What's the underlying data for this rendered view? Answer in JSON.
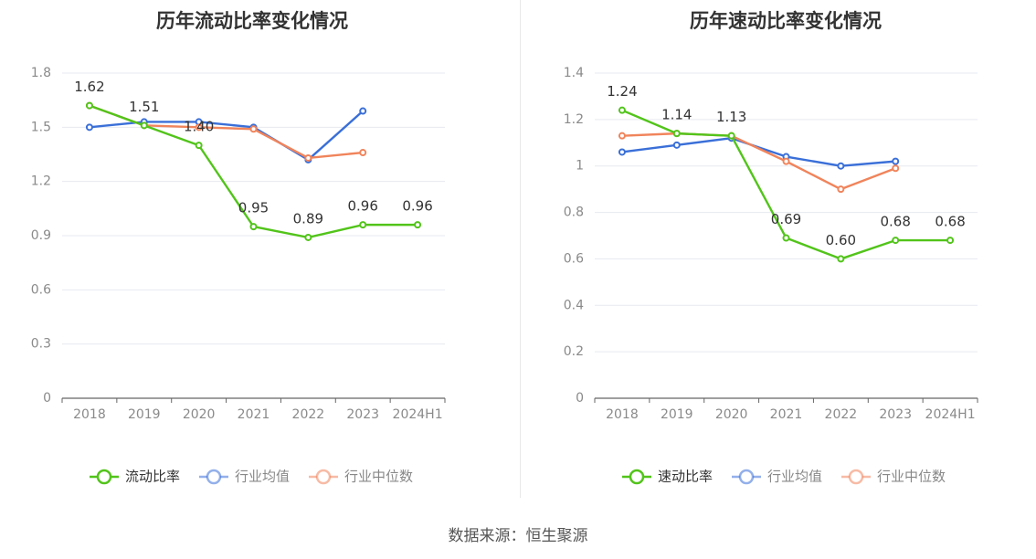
{
  "colors": {
    "primary": "#52c41a",
    "avg": "#3a6fd8",
    "median": "#f0845b",
    "grid": "#e6e9f0",
    "axis": "#666666",
    "tick": "#8a8a8a",
    "title": "#333333"
  },
  "source": "数据来源：恒生聚源",
  "chart_data": [
    {
      "type": "line",
      "title": "历年流动比率变化情况",
      "categories": [
        "2018",
        "2019",
        "2020",
        "2021",
        "2022",
        "2023",
        "2024H1"
      ],
      "ylim": [
        0,
        1.8
      ],
      "yticks": [
        "0",
        "0.3",
        "0.6",
        "0.9",
        "1.2",
        "1.5",
        "1.8"
      ],
      "grid": true,
      "legend_position": "bottom",
      "series": [
        {
          "name": "流动比率",
          "role": "primary",
          "values": [
            1.62,
            1.51,
            1.4,
            0.95,
            0.89,
            0.96,
            0.96
          ],
          "labels": [
            "1.62",
            "1.51",
            "1.40",
            "0.95",
            "0.89",
            "0.96",
            "0.96"
          ]
        },
        {
          "name": "行业均值",
          "role": "avg",
          "values": [
            1.5,
            1.53,
            1.53,
            1.5,
            1.32,
            1.59,
            null
          ]
        },
        {
          "name": "行业中位数",
          "role": "median",
          "values": [
            1.62,
            1.51,
            1.5,
            1.49,
            1.33,
            1.36,
            null
          ]
        }
      ]
    },
    {
      "type": "line",
      "title": "历年速动比率变化情况",
      "categories": [
        "2018",
        "2019",
        "2020",
        "2021",
        "2022",
        "2023",
        "2024H1"
      ],
      "ylim": [
        0,
        1.4
      ],
      "yticks": [
        "0",
        "0.2",
        "0.4",
        "0.6",
        "0.8",
        "1",
        "1.2",
        "1.4"
      ],
      "grid": true,
      "legend_position": "bottom",
      "series": [
        {
          "name": "速动比率",
          "role": "primary",
          "values": [
            1.24,
            1.14,
            1.13,
            0.69,
            0.6,
            0.68,
            0.68
          ],
          "labels": [
            "1.24",
            "1.14",
            "1.13",
            "0.69",
            "0.60",
            "0.68",
            "0.68"
          ]
        },
        {
          "name": "行业均值",
          "role": "avg",
          "values": [
            1.06,
            1.09,
            1.12,
            1.04,
            1.0,
            1.02,
            null
          ]
        },
        {
          "name": "行业中位数",
          "role": "median",
          "values": [
            1.13,
            1.14,
            1.13,
            1.02,
            0.9,
            0.99,
            null
          ]
        }
      ]
    }
  ]
}
